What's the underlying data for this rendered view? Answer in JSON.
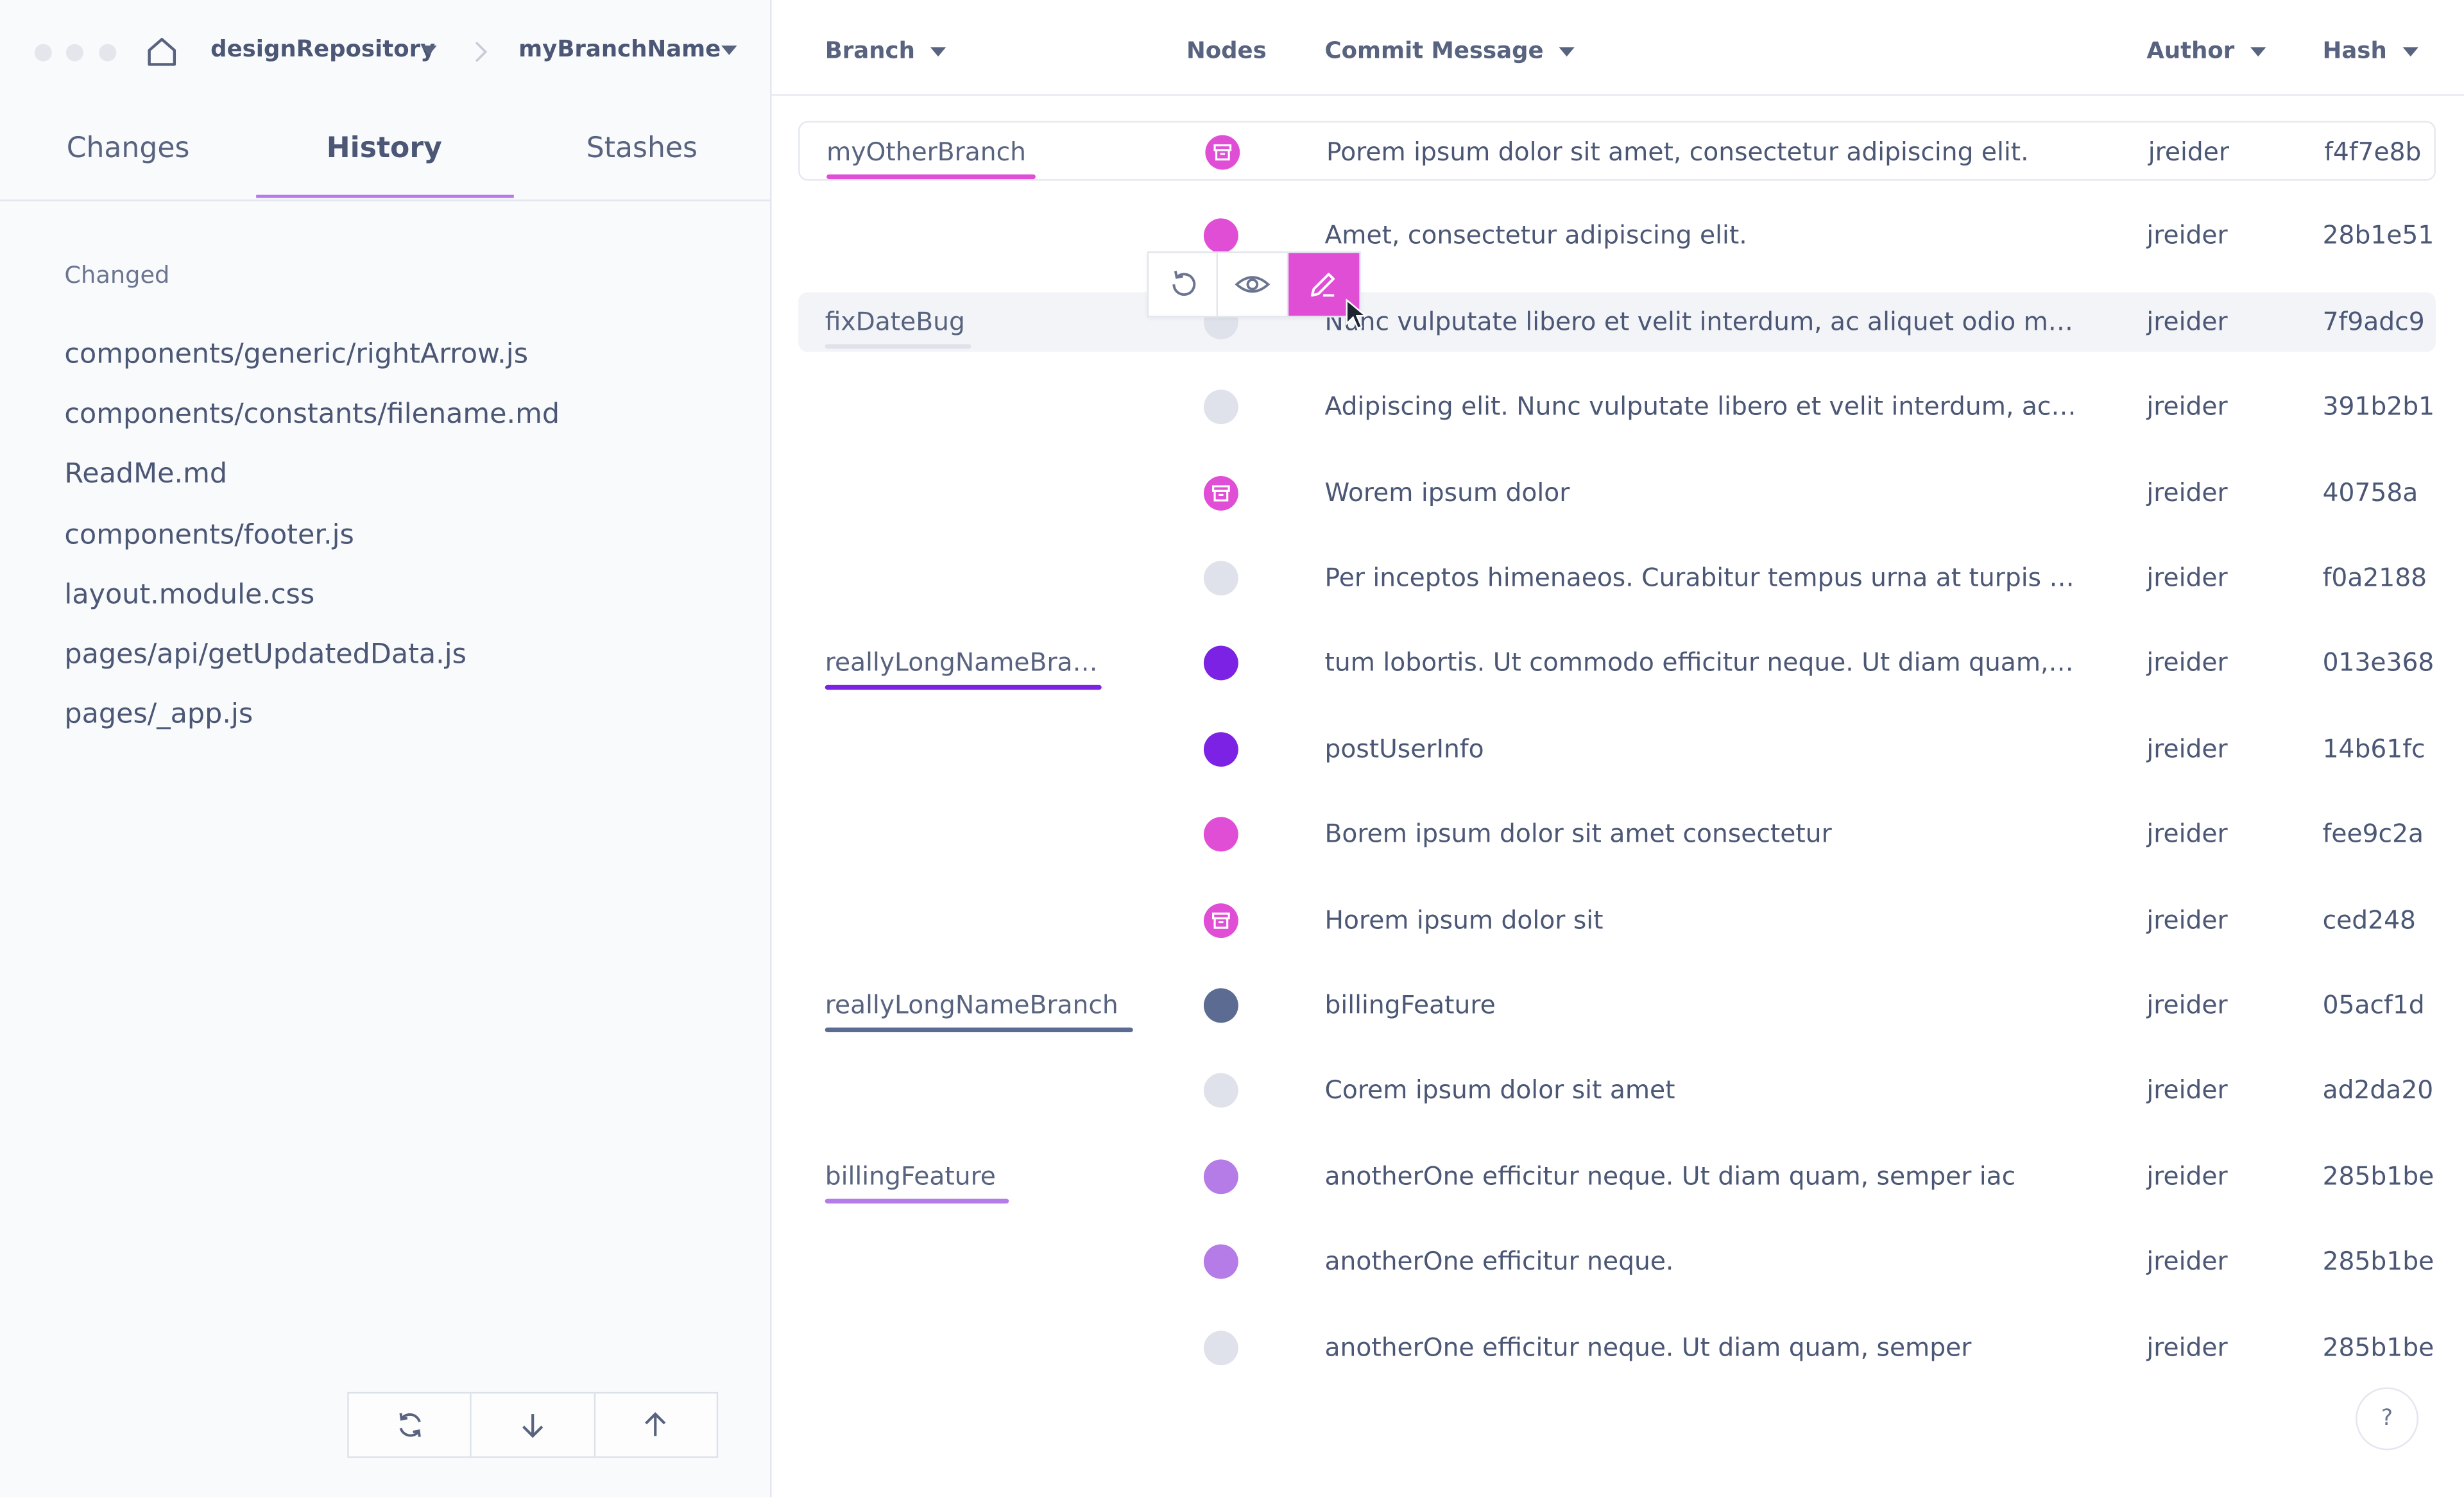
{
  "header": {
    "repository": "designRepository",
    "branch": "myBranchName"
  },
  "tabs": [
    {
      "label": "Changes"
    },
    {
      "label": "History"
    },
    {
      "label": "Stashes"
    }
  ],
  "active_tab": "History",
  "changes": {
    "section_label": "Changed",
    "files": [
      "components/generic/rightArrow.js",
      "components/constants/filename.md",
      "ReadMe.md",
      "components/footer.js",
      "layout.module.css",
      "pages/api/getUpdatedData.js",
      "pages/_app.js"
    ]
  },
  "bottom_actions": [
    {
      "icon": "refresh-icon"
    },
    {
      "icon": "arrow-down-icon"
    },
    {
      "icon": "arrow-up-icon"
    }
  ],
  "table": {
    "columns": {
      "branch": "Branch",
      "nodes": "Nodes",
      "message": "Commit Message",
      "author": "Author",
      "hash": "Hash"
    },
    "rows": [
      {
        "branch": "myOtherBranch",
        "branch_color": "#e04ed6",
        "node_color": "#e04ed6",
        "node_icon": "stash-icon",
        "message": "Porem ipsum dolor sit amet, consectetur adipiscing elit.",
        "author": "jreider",
        "hash": "f4f7e8b"
      },
      {
        "branch": "",
        "node_color": "#e04ed6",
        "message": "Amet, consectetur adipiscing elit.",
        "author": "jreider",
        "hash": "28b1e51"
      },
      {
        "branch": "fixDateBug",
        "branch_color": "#dfe2ea",
        "node_color": "#dfe2ea",
        "message": "Nunc vulputate libero et velit interdum, ac aliquet odio mattis.",
        "author": "jreider",
        "hash": "7f9adc9"
      },
      {
        "branch": "",
        "node_color": "#dfe2ea",
        "message": "Adipiscing elit. Nunc vulputate libero et velit interdum, ac aliquet odio mattis.",
        "author": "jreider",
        "hash": "391b2b1"
      },
      {
        "branch": "",
        "node_color": "#e04ed6",
        "node_icon": "stash-icon",
        "message": "Worem ipsum dolor",
        "author": "jreider",
        "hash": "40758a"
      },
      {
        "branch": "",
        "node_color": "#dfe2ea",
        "message": "Per inceptos himenaeos. Curabitur tempus urna at turpis condimentum.",
        "author": "jreider",
        "hash": "f0a2188"
      },
      {
        "branch": "reallyLongNameBranch",
        "branch_color": "#7c22e4",
        "node_color": "#7c22e4",
        "message": "tum lobortis. Ut commodo efficitur neque. Ut diam quam, semper iaculis.",
        "author": "jreider",
        "hash": "013e368"
      },
      {
        "branch": "",
        "node_color": "#7c22e4",
        "message": "postUserInfo",
        "author": "jreider",
        "hash": "14b61fc"
      },
      {
        "branch": "",
        "node_color": "#e04ed6",
        "message": "Borem ipsum dolor sit amet consectetur",
        "author": "jreider",
        "hash": "fee9c2a"
      },
      {
        "branch": "",
        "node_color": "#e04ed6",
        "node_icon": "stash-icon",
        "message": "Horem ipsum dolor sit",
        "author": "jreider",
        "hash": "ced248"
      },
      {
        "branch": "reallyLongNameBranch",
        "branch_color": "#5b6b91",
        "node_color": "#5b6b91",
        "message": "billingFeature",
        "author": "jreider",
        "hash": "05acf1d"
      },
      {
        "branch": "",
        "node_color": "#dfe2ea",
        "message": "Corem ipsum dolor sit amet",
        "author": "jreider",
        "hash": "ad2da20"
      },
      {
        "branch": "billingFeature",
        "branch_color": "#b57be6",
        "node_color": "#b57be6",
        "message": "anotherOne efficitur neque. Ut diam quam, semper iac",
        "author": "jreider",
        "hash": "285b1be"
      },
      {
        "branch": "",
        "node_color": "#b57be6",
        "message": "anotherOne efficitur neque.",
        "author": "jreider",
        "hash": "285b1be"
      },
      {
        "branch": "",
        "node_color": "#dfe2ea",
        "message": "anotherOne efficitur neque. Ut diam quam, semper",
        "author": "jreider",
        "hash": "285b1be"
      }
    ]
  },
  "row_actions": [
    {
      "icon": "revert-icon"
    },
    {
      "icon": "eye-icon"
    },
    {
      "icon": "pencil-icon"
    }
  ],
  "help": {
    "label": "?"
  },
  "colors": {
    "accent": "#e04ed6",
    "purple": "#7c22e4",
    "lavender": "#b57be6",
    "slate": "#5b6b91",
    "neutral_node": "#dfe2ea"
  }
}
